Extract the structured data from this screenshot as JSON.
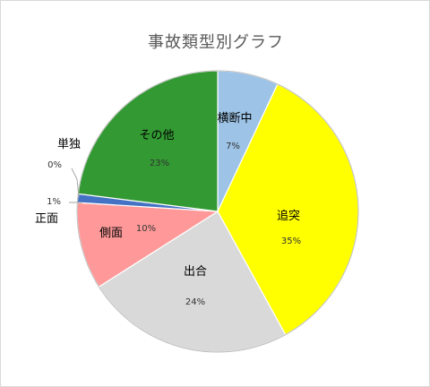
{
  "chart_data": {
    "type": "pie",
    "title": "事故類型別グラフ",
    "slices": [
      {
        "category": "横断中",
        "value": 7,
        "label": "7%",
        "color": "#9DC3E6"
      },
      {
        "category": "追突",
        "value": 35,
        "label": "35%",
        "color": "#FFFF00"
      },
      {
        "category": "出合",
        "value": 24,
        "label": "24%",
        "color": "#D9D9D9"
      },
      {
        "category": "側面",
        "value": 10,
        "label": "10%",
        "color": "#FF9999"
      },
      {
        "category": "正面",
        "value": 1,
        "label": "1%",
        "color": "#4472C4"
      },
      {
        "category": "単独",
        "value": 0,
        "label": "0%",
        "color": "#70AD47"
      },
      {
        "category": "その他",
        "value": 23,
        "label": "23%",
        "color": "#339933"
      }
    ],
    "start_angle": "12 o'clock",
    "direction": "clockwise",
    "legend": "none"
  }
}
